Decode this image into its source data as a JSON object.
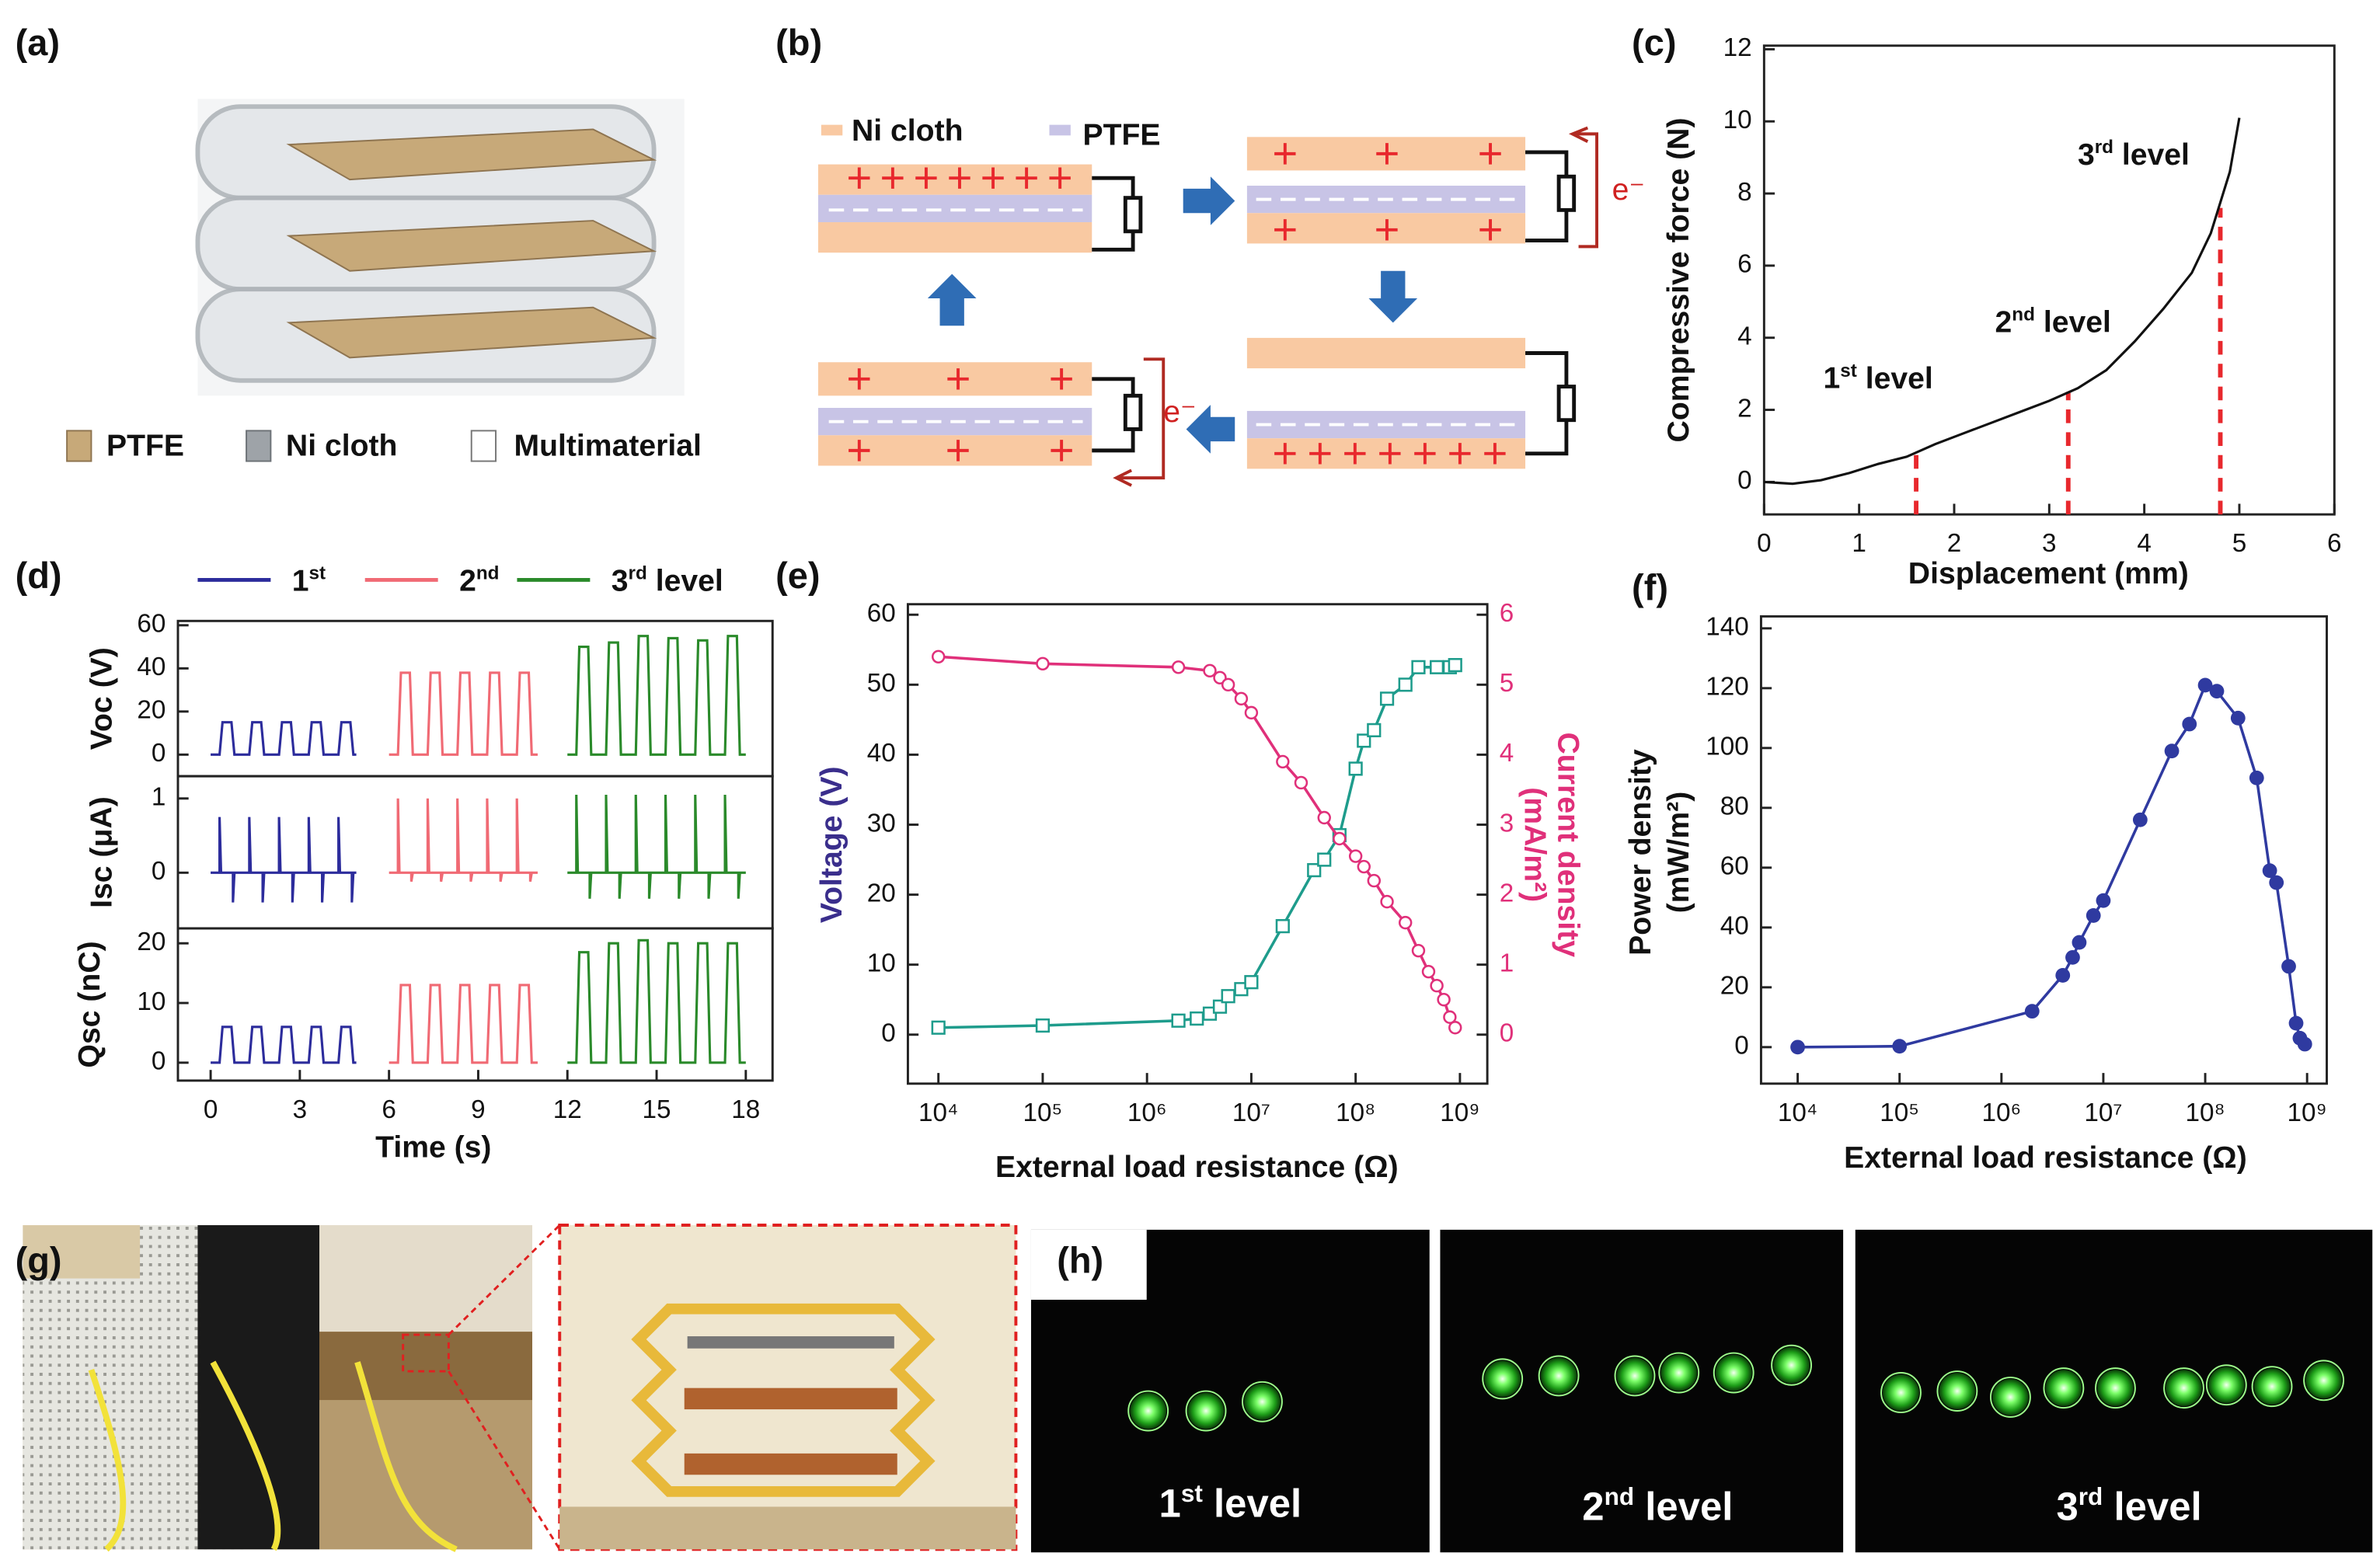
{
  "panel_labels": [
    "(a)",
    "(b)",
    "(c)",
    "(d)",
    "(e)",
    "(f)",
    "(g)",
    "(h)"
  ],
  "panel_a": {
    "legend": [
      "PTFE",
      "Ni cloth",
      "Multimaterial"
    ]
  },
  "panel_b": {
    "legend": [
      "Ni cloth",
      "PTFE"
    ],
    "electron_labels": [
      "e⁻",
      "e⁻"
    ]
  },
  "chart_data": [
    {
      "type": "line",
      "xlabel": "Displacement (mm)",
      "ylabel": "Compressive force (N)",
      "xlim": [
        0,
        6
      ],
      "ylim": [
        -0.9,
        12.1
      ],
      "xticks": [
        0,
        1,
        2,
        3,
        4,
        5,
        6
      ],
      "yticks": [
        0,
        2,
        4,
        6,
        8,
        10,
        12
      ],
      "series": [
        {
          "color": "#111111",
          "x": [
            0,
            0.3,
            0.6,
            0.9,
            1.2,
            1.5,
            1.8,
            2.1,
            2.4,
            2.7,
            3.0,
            3.3,
            3.6,
            3.9,
            4.2,
            4.5,
            4.7,
            4.9,
            5.0
          ],
          "values": [
            0,
            -0.05,
            0.05,
            0.25,
            0.5,
            0.7,
            1.05,
            1.35,
            1.65,
            1.95,
            2.25,
            2.6,
            3.1,
            3.9,
            4.8,
            5.8,
            6.9,
            8.6,
            10.1
          ]
        }
      ],
      "reference_lines": {
        "color": "#e8282d",
        "x": [
          1.6,
          3.2,
          4.8
        ],
        "y": [
          0.8,
          2.5,
          7.6
        ]
      },
      "annotations": [
        "1st level",
        "2nd level",
        "3rd level"
      ]
    },
    {
      "type": "line",
      "ylabel": "Voc (V)",
      "xlim": [
        -1.1,
        18.9
      ],
      "ylim": [
        -10,
        62
      ],
      "yticks": [
        0,
        20,
        40,
        60
      ],
      "series": [
        {
          "name": "1st",
          "color": "#2c2c9c",
          "x": [
            0,
            0.3,
            0.4,
            0.7,
            0.8,
            1.3,
            1.4,
            1.7,
            1.8,
            2.3,
            2.4,
            2.7,
            2.8,
            3.3,
            3.4,
            3.7,
            3.8,
            4.3,
            4.4,
            4.7,
            4.8,
            4.9
          ],
          "values": [
            0,
            0,
            15,
            15,
            0,
            0,
            15,
            15,
            0,
            0,
            15,
            15,
            0,
            0,
            15,
            15,
            0,
            0,
            15,
            15,
            0,
            0
          ]
        },
        {
          "name": "2nd",
          "color": "#f06a74",
          "x": [
            6,
            6.3,
            6.4,
            6.7,
            6.8,
            7.3,
            7.4,
            7.7,
            7.8,
            8.3,
            8.4,
            8.7,
            8.8,
            9.3,
            9.4,
            9.7,
            9.8,
            10.3,
            10.4,
            10.7,
            10.8,
            11
          ],
          "values": [
            0,
            0,
            38,
            38,
            0,
            0,
            38,
            38,
            0,
            0,
            38,
            38,
            0,
            0,
            38,
            38,
            0,
            0,
            38,
            38,
            0,
            0
          ]
        },
        {
          "name": "3rd level",
          "color": "#2a8a2a",
          "x": [
            12,
            12.3,
            12.4,
            12.7,
            12.8,
            13.3,
            13.4,
            13.7,
            13.8,
            14.3,
            14.4,
            14.7,
            14.8,
            15.3,
            15.4,
            15.7,
            15.8,
            16.3,
            16.4,
            16.7,
            16.8,
            17.3,
            17.4,
            17.7,
            17.8,
            18
          ],
          "values": [
            0,
            0,
            50,
            50,
            0,
            0,
            52,
            52,
            0,
            0,
            55,
            55,
            0,
            0,
            54,
            54,
            0,
            0,
            53,
            53,
            0,
            0,
            55,
            55,
            0,
            0
          ]
        }
      ]
    },
    {
      "type": "line",
      "ylabel": "Isc (μA)",
      "xlim": [
        -1.1,
        18.9
      ],
      "ylim": [
        -0.75,
        1.3
      ],
      "yticks": [
        0,
        1
      ],
      "series": [
        {
          "color": "#2c2c9c",
          "x": [
            0,
            0.3,
            0.3,
            0.35,
            0.75,
            0.75,
            0.8,
            1.3,
            1.3,
            1.35,
            1.75,
            1.75,
            1.8,
            2.3,
            2.3,
            2.35,
            2.75,
            2.75,
            2.8,
            3.3,
            3.3,
            3.35,
            3.75,
            3.75,
            3.8,
            4.3,
            4.3,
            4.35,
            4.75,
            4.75,
            4.8,
            4.9
          ],
          "values": [
            0,
            0,
            0.75,
            0,
            0,
            -0.4,
            0,
            0,
            0.75,
            0,
            0,
            -0.4,
            0,
            0,
            0.75,
            0,
            0,
            -0.4,
            0,
            0,
            0.75,
            0,
            0,
            -0.4,
            0,
            0,
            0.75,
            0,
            0,
            -0.4,
            0,
            0
          ]
        },
        {
          "color": "#f06a74",
          "x": [
            6,
            6.3,
            6.3,
            6.35,
            6.75,
            6.75,
            6.8,
            7.3,
            7.3,
            7.35,
            7.75,
            7.75,
            7.8,
            8.3,
            8.3,
            8.35,
            8.75,
            8.75,
            8.8,
            9.3,
            9.3,
            9.35,
            9.75,
            9.75,
            9.8,
            10.3,
            10.3,
            10.35,
            10.75,
            10.75,
            10.8,
            11
          ],
          "values": [
            0,
            0,
            1.0,
            0,
            0,
            -0.12,
            0,
            0,
            1.0,
            0,
            0,
            -0.12,
            0,
            0,
            1.0,
            0,
            0,
            -0.12,
            0,
            0,
            1.0,
            0,
            0,
            -0.12,
            0,
            0,
            1.0,
            0,
            0,
            -0.12,
            0,
            0
          ]
        },
        {
          "color": "#2a8a2a",
          "x": [
            12,
            12.3,
            12.3,
            12.35,
            12.75,
            12.75,
            12.8,
            13.3,
            13.3,
            13.35,
            13.75,
            13.75,
            13.8,
            14.3,
            14.3,
            14.35,
            14.75,
            14.75,
            14.8,
            15.3,
            15.3,
            15.35,
            15.75,
            15.75,
            15.8,
            16.3,
            16.3,
            16.35,
            16.75,
            16.75,
            16.8,
            17.3,
            17.3,
            17.35,
            17.75,
            17.75,
            17.8,
            18
          ],
          "values": [
            0,
            0,
            1.05,
            0,
            0,
            -0.35,
            0,
            0,
            1.05,
            0,
            0,
            -0.35,
            0,
            0,
            1.05,
            0,
            0,
            -0.35,
            0,
            0,
            1.05,
            0,
            0,
            -0.35,
            0,
            0,
            1.05,
            0,
            0,
            -0.35,
            0,
            0,
            1.05,
            0,
            0,
            -0.35,
            0,
            0
          ]
        }
      ]
    },
    {
      "type": "line",
      "ylabel": "Qsc (nC)",
      "xlabel": "Time (s)",
      "xlim": [
        -1.1,
        18.9
      ],
      "ylim": [
        -3,
        22.5
      ],
      "yticks": [
        0,
        10,
        20
      ],
      "xticks": [
        0,
        3,
        6,
        9,
        12,
        15,
        18
      ],
      "series": [
        {
          "color": "#2c2c9c",
          "x": [
            0,
            0.3,
            0.4,
            0.7,
            0.8,
            1.3,
            1.4,
            1.7,
            1.8,
            2.3,
            2.4,
            2.7,
            2.8,
            3.3,
            3.4,
            3.7,
            3.8,
            4.3,
            4.4,
            4.7,
            4.8,
            4.9
          ],
          "values": [
            0,
            0,
            6,
            6,
            0,
            0,
            6,
            6,
            0,
            0,
            6,
            6,
            0,
            0,
            6,
            6,
            0,
            0,
            6,
            6,
            0,
            0
          ]
        },
        {
          "color": "#f06a74",
          "x": [
            6,
            6.3,
            6.4,
            6.7,
            6.8,
            7.3,
            7.4,
            7.7,
            7.8,
            8.3,
            8.4,
            8.7,
            8.8,
            9.3,
            9.4,
            9.7,
            9.8,
            10.3,
            10.4,
            10.7,
            10.8,
            11
          ],
          "values": [
            0,
            0,
            13,
            13,
            0,
            0,
            13,
            13,
            0,
            0,
            13,
            13,
            0,
            0,
            13,
            13,
            0,
            0,
            13,
            13,
            0,
            0
          ]
        },
        {
          "color": "#2a8a2a",
          "x": [
            12,
            12.3,
            12.4,
            12.7,
            12.8,
            13.3,
            13.4,
            13.7,
            13.8,
            14.3,
            14.4,
            14.7,
            14.8,
            15.3,
            15.4,
            15.7,
            15.8,
            16.3,
            16.4,
            16.7,
            16.8,
            17.3,
            17.4,
            17.7,
            17.8,
            18
          ],
          "values": [
            0,
            0,
            18.5,
            18.5,
            0,
            0,
            20,
            20,
            0,
            0,
            20.5,
            20.5,
            0,
            0,
            20,
            20,
            0,
            0,
            20,
            20,
            0,
            0,
            20,
            20,
            0,
            0
          ]
        }
      ]
    },
    {
      "type": "line",
      "log_x": true,
      "xlabel": "External load resistance (Ω)",
      "ylabel": "Voltage (V)",
      "ylabel_color": "#3a2e8c",
      "y2label": [
        "Current density",
        "(mA/m²)"
      ],
      "xlim": [
        5100,
        1830000000.0
      ],
      "ylim": [
        -7,
        61.5
      ],
      "y2lim": [
        -0.7,
        6.15
      ],
      "xticks": [
        {
          "value": 10000.0,
          "label": "10⁴"
        },
        {
          "value": 100000.0,
          "label": "10⁵"
        },
        {
          "value": 1000000.0,
          "label": "10⁶"
        },
        {
          "value": 10000000.0,
          "label": "10⁷"
        },
        {
          "value": 100000000.0,
          "label": "10⁸"
        },
        {
          "value": 1000000000.0,
          "label": "10⁹"
        }
      ],
      "yticks": [
        0,
        10,
        20,
        30,
        40,
        50,
        60
      ],
      "y2ticks": [
        0,
        1,
        2,
        3,
        4,
        5,
        6
      ],
      "series": [
        {
          "color": "#1e9c8c",
          "marker": "square",
          "x": [
            10000.0,
            100000.0,
            2000000.0,
            3000000.0,
            4000000.0,
            5000000.0,
            6000000.0,
            8000000.0,
            10000000.0,
            20000000.0,
            40000000.0,
            50000000.0,
            70000000.0,
            100000000.0,
            120000000.0,
            150000000.0,
            200000000.0,
            300000000.0,
            400000000.0,
            600000000.0,
            800000000.0,
            900000000.0
          ],
          "values": [
            1,
            1.3,
            2,
            2.3,
            3,
            4,
            5.5,
            6.5,
            7.5,
            15.5,
            23.5,
            25,
            28.5,
            38,
            42,
            43.5,
            48,
            50,
            52.5,
            52.5,
            52.5,
            52.8
          ]
        },
        {
          "color": "#e0307a",
          "marker": "circle",
          "axis": "y2",
          "x": [
            10000.0,
            100000.0,
            2000000.0,
            4000000.0,
            5000000.0,
            6000000.0,
            8000000.0,
            10000000.0,
            20000000.0,
            30000000.0,
            50000000.0,
            70000000.0,
            100000000.0,
            120000000.0,
            150000000.0,
            200000000.0,
            300000000.0,
            400000000.0,
            500000000.0,
            600000000.0,
            700000000.0,
            800000000.0,
            900000000.0
          ],
          "values": [
            5.4,
            5.3,
            5.25,
            5.2,
            5.1,
            5.0,
            4.8,
            4.6,
            3.9,
            3.6,
            3.1,
            2.8,
            2.55,
            2.4,
            2.2,
            1.9,
            1.6,
            1.2,
            0.9,
            0.7,
            0.5,
            0.25,
            0.1
          ]
        }
      ]
    },
    {
      "type": "line",
      "log_x": true,
      "xlabel": "External load resistance (Ω)",
      "ylabel": [
        "Power density",
        "(mW/m²)"
      ],
      "xlim": [
        4370,
        1560000000.0
      ],
      "ylim": [
        -12.2,
        144
      ],
      "xticks": [
        {
          "value": 10000.0,
          "label": "10⁴"
        },
        {
          "value": 100000.0,
          "label": "10⁵"
        },
        {
          "value": 1000000.0,
          "label": "10⁶"
        },
        {
          "value": 10000000.0,
          "label": "10⁷"
        },
        {
          "value": 100000000.0,
          "label": "10⁸"
        },
        {
          "value": 1000000000.0,
          "label": "10⁹"
        }
      ],
      "yticks": [
        0,
        20,
        40,
        60,
        80,
        100,
        120,
        140
      ],
      "series": [
        {
          "color": "#2f3aa0",
          "marker": "dot",
          "x": [
            10000.0,
            100000.0,
            2000000.0,
            4000000.0,
            5000000.0,
            5800000.0,
            8000000.0,
            10000000.0,
            23000000.0,
            47000000.0,
            70000000.0,
            100000000.0,
            130000000.0,
            210000000.0,
            320000000.0,
            430000000.0,
            500000000.0,
            660000000.0,
            780000000.0,
            850000000.0,
            950000000.0
          ],
          "values": [
            0,
            0.3,
            12,
            24,
            30,
            35,
            44,
            49,
            76,
            99,
            108,
            121,
            119,
            110,
            90,
            59,
            55,
            27,
            8,
            3,
            1
          ]
        }
      ]
    }
  ],
  "panel_h": {
    "captions": [
      "1st level",
      "2nd level",
      "3rd level"
    ]
  }
}
